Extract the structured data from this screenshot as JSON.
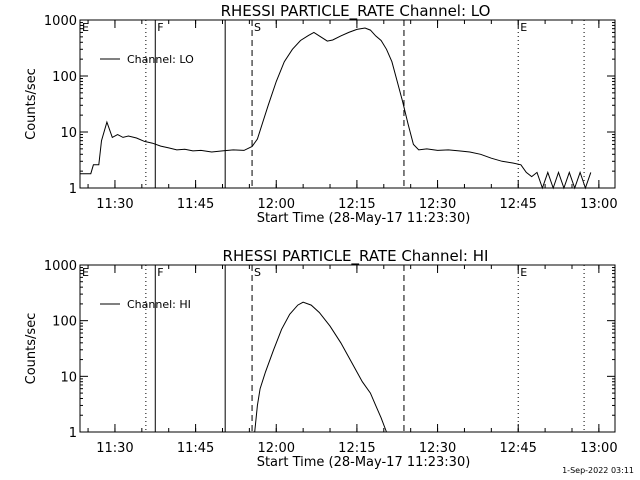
{
  "footer": "1-Sep-2022 03:11",
  "chart_data": [
    {
      "type": "line",
      "title": "RHESSI PARTICLE_RATE Channel: LO",
      "xlabel": "Start Time (28-May-17 11:23:30)",
      "ylabel": "Counts/sec",
      "yscale": "log",
      "ylim": [
        1,
        1000
      ],
      "xlim": [
        "11:23:30",
        "13:03:00"
      ],
      "x_ticks": [
        "11:30",
        "11:45",
        "12:00",
        "12:15",
        "12:30",
        "12:45",
        "13:00"
      ],
      "y_ticks": [
        "1",
        "10",
        "100",
        "1000"
      ],
      "legend": "top-left",
      "series": [
        {
          "name": "Channel: LO",
          "points": [
            [
              "11:23:30",
              1.8
            ],
            [
              "11:25:30",
              1.8
            ],
            [
              "11:26:00",
              2.6
            ],
            [
              "11:27:00",
              2.6
            ],
            [
              "11:27:30",
              7.0
            ],
            [
              "11:28:30",
              15.0
            ],
            [
              "11:29:30",
              8.0
            ],
            [
              "11:30:30",
              9.0
            ],
            [
              "11:31:30",
              8.0
            ],
            [
              "11:32:30",
              8.5
            ],
            [
              "11:34:00",
              7.8
            ],
            [
              "11:35:30",
              6.8
            ],
            [
              "11:37:00",
              6.3
            ],
            [
              "11:38:30",
              5.6
            ],
            [
              "11:40:00",
              5.2
            ],
            [
              "11:41:30",
              4.8
            ],
            [
              "11:43:00",
              4.9
            ],
            [
              "11:44:30",
              4.6
            ],
            [
              "11:46:00",
              4.7
            ],
            [
              "11:48:00",
              4.4
            ],
            [
              "11:50:00",
              4.6
            ],
            [
              "11:52:00",
              4.8
            ],
            [
              "11:54:00",
              4.7
            ],
            [
              "11:55:30",
              5.5
            ],
            [
              "11:56:30",
              7.5
            ],
            [
              "11:57:30",
              15.0
            ],
            [
              "11:58:30",
              30.0
            ],
            [
              "12:00:00",
              80.0
            ],
            [
              "12:01:30",
              180.0
            ],
            [
              "12:03:00",
              300.0
            ],
            [
              "12:04:30",
              430.0
            ],
            [
              "12:06:00",
              530.0
            ],
            [
              "12:07:00",
              600.0
            ],
            [
              "12:08:00",
              520.0
            ],
            [
              "12:09:30",
              420.0
            ],
            [
              "12:10:30",
              440.0
            ],
            [
              "12:12:00",
              520.0
            ],
            [
              "12:13:30",
              600.0
            ],
            [
              "12:15:00",
              680.0
            ],
            [
              "12:16:30",
              720.0
            ],
            [
              "12:17:30",
              660.0
            ],
            [
              "12:18:30",
              520.0
            ],
            [
              "12:19:30",
              430.0
            ],
            [
              "12:20:30",
              300.0
            ],
            [
              "12:21:30",
              180.0
            ],
            [
              "12:22:30",
              80.0
            ],
            [
              "12:23:30",
              35.0
            ],
            [
              "12:24:30",
              14.0
            ],
            [
              "12:25:30",
              6.0
            ],
            [
              "12:26:30",
              4.8
            ],
            [
              "12:28:00",
              5.0
            ],
            [
              "12:30:00",
              4.7
            ],
            [
              "12:32:00",
              4.8
            ],
            [
              "12:34:00",
              4.6
            ],
            [
              "12:36:00",
              4.4
            ],
            [
              "12:38:00",
              4.0
            ],
            [
              "12:40:00",
              3.4
            ],
            [
              "12:42:00",
              3.0
            ],
            [
              "12:44:00",
              2.8
            ],
            [
              "12:45:30",
              2.6
            ],
            [
              "12:46:30",
              1.9
            ],
            [
              "12:47:30",
              1.6
            ],
            [
              "12:48:30",
              1.9
            ],
            [
              "12:49:30",
              1.0
            ],
            [
              "12:50:30",
              1.9
            ],
            [
              "12:51:30",
              1.0
            ],
            [
              "12:52:30",
              1.9
            ],
            [
              "12:53:30",
              1.0
            ],
            [
              "12:54:30",
              1.9
            ],
            [
              "12:55:30",
              1.0
            ],
            [
              "12:56:30",
              1.9
            ],
            [
              "12:57:30",
              1.0
            ],
            [
              "12:58:30",
              1.9
            ]
          ]
        }
      ],
      "markers": [
        {
          "label": "E",
          "time": "11:23:30",
          "style": "none"
        },
        {
          "label": "",
          "time": "11:35:45",
          "style": "dotted"
        },
        {
          "label": "F",
          "time": "11:37:30",
          "style": "solid"
        },
        {
          "label": "",
          "time": "11:50:30",
          "style": "solid"
        },
        {
          "label": "S",
          "time": "11:55:30",
          "style": "dashed"
        },
        {
          "label": "",
          "time": "12:23:45",
          "style": "dashed"
        },
        {
          "label": "E",
          "time": "12:45:00",
          "style": "dotted"
        },
        {
          "label": "",
          "time": "12:57:15",
          "style": "dotted"
        }
      ]
    },
    {
      "type": "line",
      "title": "RHESSI PARTICLE_RATE Channel: HI",
      "xlabel": "Start Time (28-May-17 11:23:30)",
      "ylabel": "Counts/sec",
      "yscale": "log",
      "ylim": [
        1,
        1000
      ],
      "xlim": [
        "11:23:30",
        "13:03:00"
      ],
      "x_ticks": [
        "11:30",
        "11:45",
        "12:00",
        "12:15",
        "12:30",
        "12:45",
        "13:00"
      ],
      "y_ticks": [
        "1",
        "10",
        "100",
        "1000"
      ],
      "legend": "top-left",
      "series": [
        {
          "name": "Channel: HI",
          "points": [
            [
              "11:56:00",
              1.0
            ],
            [
              "11:56:30",
              3.0
            ],
            [
              "11:57:00",
              6.0
            ],
            [
              "11:58:00",
              12.0
            ],
            [
              "11:59:30",
              30.0
            ],
            [
              "12:01:00",
              70.0
            ],
            [
              "12:02:30",
              130.0
            ],
            [
              "12:04:00",
              190.0
            ],
            [
              "12:05:00",
              215.0
            ],
            [
              "12:06:30",
              190.0
            ],
            [
              "12:08:00",
              140.0
            ],
            [
              "12:10:00",
              80.0
            ],
            [
              "12:12:00",
              40.0
            ],
            [
              "12:14:00",
              18.0
            ],
            [
              "12:16:00",
              8.0
            ],
            [
              "12:17:30",
              5.0
            ],
            [
              "12:18:30",
              3.0
            ],
            [
              "12:19:30",
              1.8
            ],
            [
              "12:20:30",
              1.0
            ]
          ]
        }
      ],
      "markers": [
        {
          "label": "E",
          "time": "11:23:30",
          "style": "none"
        },
        {
          "label": "",
          "time": "11:35:45",
          "style": "dotted"
        },
        {
          "label": "F",
          "time": "11:37:30",
          "style": "solid"
        },
        {
          "label": "",
          "time": "11:50:30",
          "style": "solid"
        },
        {
          "label": "S",
          "time": "11:55:30",
          "style": "dashed"
        },
        {
          "label": "",
          "time": "12:23:45",
          "style": "dashed"
        },
        {
          "label": "E",
          "time": "12:45:00",
          "style": "dotted"
        },
        {
          "label": "",
          "time": "12:57:15",
          "style": "dotted"
        }
      ]
    }
  ]
}
